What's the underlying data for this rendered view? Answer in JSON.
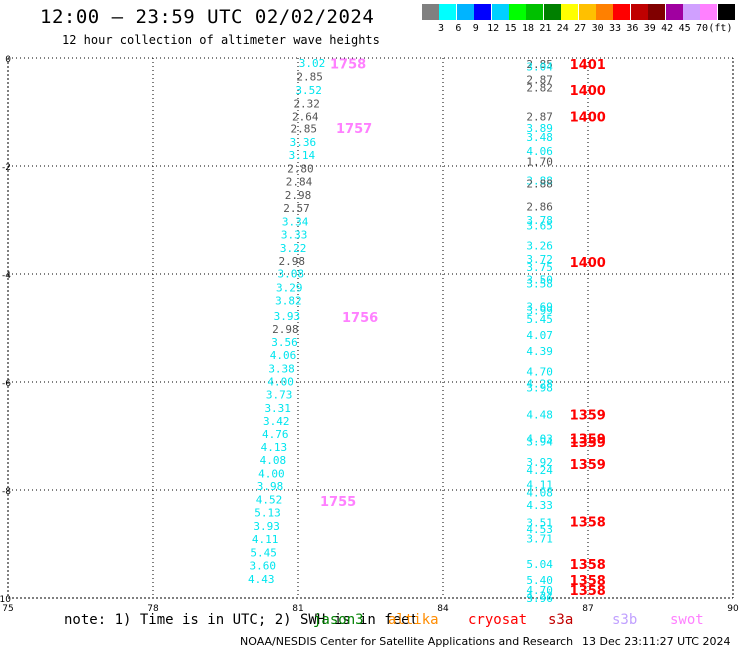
{
  "title": "12:00 – 23:59 UTC 02/02/2024",
  "subtitle": "12 hour collection of altimeter wave heights",
  "scale": {
    "colors": [
      "#808080",
      "#00ffff",
      "#00b4ff",
      "#0000ff",
      "#00d0ff",
      "#00ff00",
      "#00c000",
      "#008000",
      "#ffff00",
      "#ffc000",
      "#ff8000",
      "#ff0000",
      "#c00000",
      "#800000",
      "#a000a0",
      "#d0a0ff",
      "#ff80ff",
      "#000000"
    ],
    "labels": [
      "3",
      "6",
      "9",
      "12",
      "15",
      "18",
      "21",
      "24",
      "27",
      "30",
      "33",
      "36",
      "39",
      "42",
      "45",
      "70",
      "(ft)"
    ]
  },
  "note": {
    "text": "note: 1) Time is in UTC; 2) SWH is in feet",
    "missions": [
      {
        "name": "jason3",
        "color": "#008000"
      },
      {
        "name": "altika",
        "color": "#ff8c00"
      },
      {
        "name": "cryosat",
        "color": "#ff0000"
      },
      {
        "name": "s3a",
        "color": "#c00000"
      },
      {
        "name": "s3b",
        "color": "#c0a0ff"
      },
      {
        "name": "swot",
        "color": "#ff80ff"
      }
    ]
  },
  "footer": {
    "left": "NOAA/NESDIS Center for Satellite Applications and Research",
    "right": "13 Dec 23:11:27 UTC 2024"
  },
  "chart_data": {
    "type": "scatter",
    "title": "12:00 – 23:59 UTC 02/02/2024",
    "subtitle": "12 hour collection of altimeter wave heights",
    "xlabel": "",
    "ylabel": "",
    "xlim": [
      75,
      90
    ],
    "ylim": [
      -10,
      0
    ],
    "xticks": [
      "75",
      "78",
      "81",
      "84",
      "87",
      "90"
    ],
    "yticks": [
      "0",
      "-2",
      "-4",
      "-6",
      "-8",
      "-10"
    ],
    "grid": true,
    "legend": "bottom",
    "tracks": [
      {
        "time_labels": [
          "1758",
          "1757",
          "1756",
          "1755"
        ],
        "time_color": "#ff80ff",
        "time_y": [
          -0.1,
          -1.3,
          -4.8,
          -8.2
        ],
        "points": [
          {
            "x": 81.29,
            "y": -0.09,
            "v": "3.02",
            "c": "#00e5ee"
          },
          {
            "x": 81.24,
            "y": -0.34,
            "v": "2.85",
            "c": "#555555"
          },
          {
            "x": 81.22,
            "y": -0.59,
            "v": "3.52",
            "c": "#00e5ee"
          },
          {
            "x": 81.18,
            "y": -0.84,
            "v": "2.32",
            "c": "#555555"
          },
          {
            "x": 81.15,
            "y": -1.08,
            "v": "2.64",
            "c": "#555555"
          },
          {
            "x": 81.12,
            "y": -1.31,
            "v": "2.85",
            "c": "#555555"
          },
          {
            "x": 81.1,
            "y": -1.56,
            "v": "3.36",
            "c": "#00e5ee"
          },
          {
            "x": 81.08,
            "y": -1.8,
            "v": "3.14",
            "c": "#00e5ee"
          },
          {
            "x": 81.05,
            "y": -2.05,
            "v": "2.80",
            "c": "#555555"
          },
          {
            "x": 81.02,
            "y": -2.29,
            "v": "2.84",
            "c": "#555555"
          },
          {
            "x": 81.0,
            "y": -2.54,
            "v": "2.98",
            "c": "#555555"
          },
          {
            "x": 80.97,
            "y": -2.78,
            "v": "2.57",
            "c": "#555555"
          },
          {
            "x": 80.94,
            "y": -3.03,
            "v": "3.34",
            "c": "#00e5ee"
          },
          {
            "x": 80.92,
            "y": -3.27,
            "v": "3.33",
            "c": "#00e5ee"
          },
          {
            "x": 80.9,
            "y": -3.52,
            "v": "3.22",
            "c": "#00e5ee"
          },
          {
            "x": 80.87,
            "y": -3.76,
            "v": "2.98",
            "c": "#555555"
          },
          {
            "x": 80.85,
            "y": -3.99,
            "v": "3.08",
            "c": "#00e5ee"
          },
          {
            "x": 80.82,
            "y": -4.25,
            "v": "3.29",
            "c": "#00e5ee"
          },
          {
            "x": 80.8,
            "y": -4.49,
            "v": "3.82",
            "c": "#00e5ee"
          },
          {
            "x": 80.77,
            "y": -4.78,
            "v": "3.93",
            "c": "#00e5ee"
          },
          {
            "x": 80.74,
            "y": -5.02,
            "v": "2.98",
            "c": "#555555"
          },
          {
            "x": 80.72,
            "y": -5.26,
            "v": "3.56",
            "c": "#00e5ee"
          },
          {
            "x": 80.69,
            "y": -5.5,
            "v": "4.06",
            "c": "#00e5ee"
          },
          {
            "x": 80.66,
            "y": -5.75,
            "v": "3.38",
            "c": "#00e5ee"
          },
          {
            "x": 80.64,
            "y": -5.99,
            "v": "4.00",
            "c": "#00e5ee"
          },
          {
            "x": 80.61,
            "y": -6.23,
            "v": "3.73",
            "c": "#00e5ee"
          },
          {
            "x": 80.58,
            "y": -6.48,
            "v": "3.31",
            "c": "#00e5ee"
          },
          {
            "x": 80.55,
            "y": -6.72,
            "v": "3.42",
            "c": "#00e5ee"
          },
          {
            "x": 80.53,
            "y": -6.96,
            "v": "4.76",
            "c": "#00e5ee"
          },
          {
            "x": 80.5,
            "y": -7.2,
            "v": "4.13",
            "c": "#00e5ee"
          },
          {
            "x": 80.48,
            "y": -7.44,
            "v": "4.08",
            "c": "#00e5ee"
          },
          {
            "x": 80.45,
            "y": -7.69,
            "v": "4.00",
            "c": "#00e5ee"
          },
          {
            "x": 80.42,
            "y": -7.93,
            "v": "3.98",
            "c": "#00e5ee"
          },
          {
            "x": 80.4,
            "y": -8.18,
            "v": "4.52",
            "c": "#00e5ee"
          },
          {
            "x": 80.37,
            "y": -8.42,
            "v": "5.13",
            "c": "#00e5ee"
          },
          {
            "x": 80.35,
            "y": -8.67,
            "v": "3.93",
            "c": "#00e5ee"
          },
          {
            "x": 80.32,
            "y": -8.91,
            "v": "4.11",
            "c": "#00e5ee"
          },
          {
            "x": 80.29,
            "y": -9.16,
            "v": "5.45",
            "c": "#00e5ee"
          },
          {
            "x": 80.27,
            "y": -9.4,
            "v": "3.60",
            "c": "#00e5ee"
          },
          {
            "x": 80.24,
            "y": -9.65,
            "v": "4.43",
            "c": "#00e5ee"
          }
        ]
      },
      {
        "time_labels": [
          "1401",
          "1400",
          "1400",
          "1400",
          "1359",
          "1359",
          "1359",
          "1359",
          "1358",
          "1358",
          "1358",
          "1358"
        ],
        "time_color": "#ff0000",
        "time_y": [
          -0.11,
          -0.59,
          -1.08,
          -3.78,
          -6.6,
          -7.05,
          -7.11,
          -7.52,
          -8.58,
          -9.37,
          -9.67,
          -9.85
        ],
        "points": [
          {
            "x": 86.0,
            "y": -0.11,
            "v": "2.85",
            "c": "#555555"
          },
          {
            "x": 86.0,
            "y": -0.16,
            "v": "3.04",
            "c": "#00e5ee"
          },
          {
            "x": 86.0,
            "y": -0.4,
            "v": "2.87",
            "c": "#555555"
          },
          {
            "x": 86.0,
            "y": -0.55,
            "v": "2.82",
            "c": "#555555"
          },
          {
            "x": 86.0,
            "y": -1.08,
            "v": "2.87",
            "c": "#555555"
          },
          {
            "x": 86.0,
            "y": -1.3,
            "v": "3.89",
            "c": "#00e5ee"
          },
          {
            "x": 86.0,
            "y": -1.46,
            "v": "3.48",
            "c": "#00e5ee"
          },
          {
            "x": 86.0,
            "y": -1.72,
            "v": "4.06",
            "c": "#00e5ee"
          },
          {
            "x": 86.0,
            "y": -1.92,
            "v": "1.70",
            "c": "#555555"
          },
          {
            "x": 86.0,
            "y": -2.27,
            "v": "3.88",
            "c": "#00e5ee"
          },
          {
            "x": 86.0,
            "y": -2.32,
            "v": "2.88",
            "c": "#555555"
          },
          {
            "x": 86.0,
            "y": -2.75,
            "v": "2.86",
            "c": "#555555"
          },
          {
            "x": 86.0,
            "y": -3.0,
            "v": "3.78",
            "c": "#00e5ee"
          },
          {
            "x": 86.0,
            "y": -3.1,
            "v": "3.65",
            "c": "#00e5ee"
          },
          {
            "x": 86.0,
            "y": -3.47,
            "v": "3.26",
            "c": "#00e5ee"
          },
          {
            "x": 86.0,
            "y": -3.72,
            "v": "3.72",
            "c": "#00e5ee"
          },
          {
            "x": 86.0,
            "y": -3.87,
            "v": "3.75",
            "c": "#00e5ee"
          },
          {
            "x": 86.0,
            "y": -4.1,
            "v": "3.50",
            "c": "#00e5ee"
          },
          {
            "x": 86.0,
            "y": -4.18,
            "v": "3.58",
            "c": "#00e5ee"
          },
          {
            "x": 86.0,
            "y": -4.6,
            "v": "3.69",
            "c": "#00e5ee"
          },
          {
            "x": 86.0,
            "y": -4.68,
            "v": "3.99",
            "c": "#00e5ee"
          },
          {
            "x": 86.0,
            "y": -4.83,
            "v": "5.45",
            "c": "#00e5ee"
          },
          {
            "x": 86.0,
            "y": -5.13,
            "v": "4.07",
            "c": "#00e5ee"
          },
          {
            "x": 86.0,
            "y": -5.43,
            "v": "4.39",
            "c": "#00e5ee"
          },
          {
            "x": 86.0,
            "y": -5.81,
            "v": "4.70",
            "c": "#00e5ee"
          },
          {
            "x": 86.0,
            "y": -6.03,
            "v": "4.28",
            "c": "#00e5ee"
          },
          {
            "x": 86.0,
            "y": -6.1,
            "v": "3.98",
            "c": "#00e5ee"
          },
          {
            "x": 86.0,
            "y": -6.6,
            "v": "4.48",
            "c": "#00e5ee"
          },
          {
            "x": 86.0,
            "y": -7.05,
            "v": "4.03",
            "c": "#00e5ee"
          },
          {
            "x": 86.0,
            "y": -7.1,
            "v": "3.94",
            "c": "#00e5ee"
          },
          {
            "x": 86.0,
            "y": -7.48,
            "v": "3.92",
            "c": "#00e5ee"
          },
          {
            "x": 86.0,
            "y": -7.63,
            "v": "4.24",
            "c": "#00e5ee"
          },
          {
            "x": 86.0,
            "y": -7.9,
            "v": "4.11",
            "c": "#00e5ee"
          },
          {
            "x": 86.0,
            "y": -8.05,
            "v": "4.08",
            "c": "#00e5ee"
          },
          {
            "x": 86.0,
            "y": -8.28,
            "v": "4.33",
            "c": "#00e5ee"
          },
          {
            "x": 86.0,
            "y": -8.6,
            "v": "3.51",
            "c": "#00e5ee"
          },
          {
            "x": 86.0,
            "y": -8.72,
            "v": "4.53",
            "c": "#00e5ee"
          },
          {
            "x": 86.0,
            "y": -8.9,
            "v": "3.71",
            "c": "#00e5ee"
          },
          {
            "x": 86.0,
            "y": -9.37,
            "v": "5.04",
            "c": "#00e5ee"
          },
          {
            "x": 86.0,
            "y": -9.67,
            "v": "5.40",
            "c": "#00e5ee"
          },
          {
            "x": 86.0,
            "y": -9.85,
            "v": "4.70",
            "c": "#00e5ee"
          },
          {
            "x": 86.0,
            "y": -9.95,
            "v": "4.22",
            "c": "#00e5ee"
          },
          {
            "x": 86.0,
            "y": -10.0,
            "v": "3.96",
            "c": "#00e5ee"
          }
        ]
      }
    ]
  }
}
